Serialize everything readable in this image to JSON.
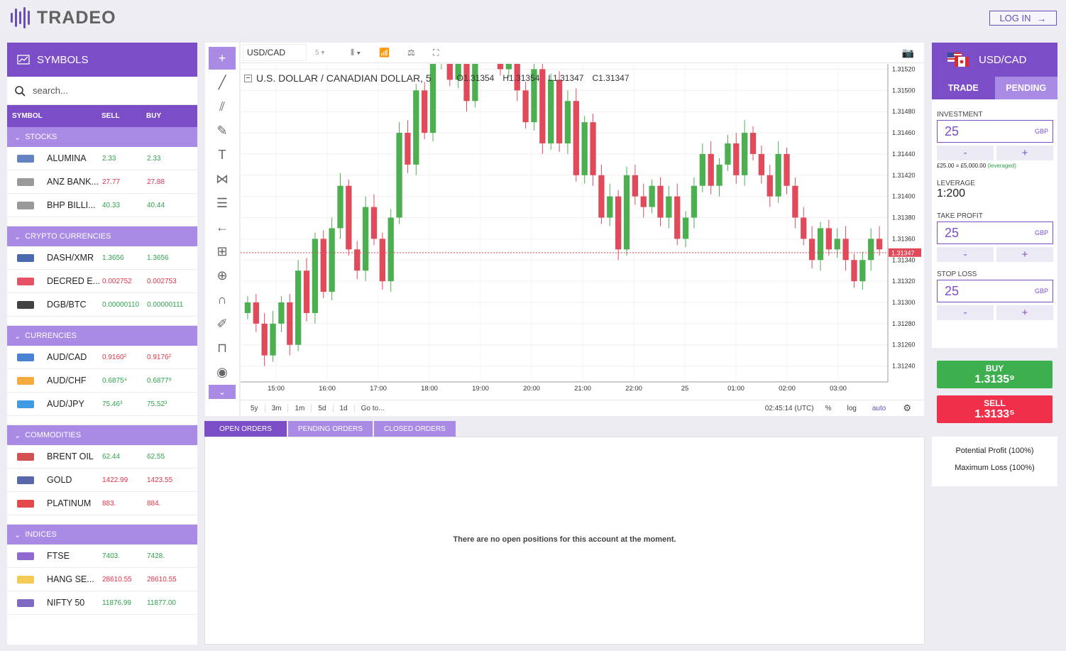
{
  "header": {
    "logo": "TRADEO",
    "login": "LOG IN"
  },
  "symbols": {
    "title": "SYMBOLS",
    "search_placeholder": "search...",
    "columns": {
      "symbol": "SYMBOL",
      "sell": "SELL",
      "buy": "BUY"
    },
    "categories": [
      {
        "name": "STOCKS",
        "rows": [
          {
            "name": "ALUMINA",
            "sell": "2.33",
            "buy": "2.33",
            "color": "g"
          },
          {
            "name": "ANZ BANK...",
            "sell": "27.77",
            "buy": "27.88",
            "color": "r"
          },
          {
            "name": "BHP BILLI...",
            "sell": "40.33",
            "buy": "40.44",
            "color": "g"
          }
        ]
      },
      {
        "name": "CRYPTO CURRENCIES",
        "rows": [
          {
            "name": "DASH/XMR",
            "sell": "1.3656",
            "buy": "1.3656",
            "color": "g"
          },
          {
            "name": "DECRED E...",
            "sell": "0.002752",
            "buy": "0.002753",
            "color": "r"
          },
          {
            "name": "DGB/BTC",
            "sell": "0.00000110",
            "buy": "0.00000111",
            "color": "g"
          }
        ]
      },
      {
        "name": "CURRENCIES",
        "rows": [
          {
            "name": "AUD/CAD",
            "sell": "0.9160²",
            "buy": "0.9176²",
            "color": "r"
          },
          {
            "name": "AUD/CHF",
            "sell": "0.6875⁴",
            "buy": "0.6877⁸",
            "color": "g"
          },
          {
            "name": "AUD/JPY",
            "sell": "75.46³",
            "buy": "75.52³",
            "color": "g"
          }
        ]
      },
      {
        "name": "COMMODITIES",
        "rows": [
          {
            "name": "BRENT OIL",
            "sell": "62.44",
            "buy": "62.55",
            "color": "g"
          },
          {
            "name": "GOLD",
            "sell": "1422.99",
            "buy": "1423.55",
            "color": "r"
          },
          {
            "name": "PLATINUM",
            "sell": "883.",
            "buy": "884.",
            "color": "r"
          }
        ]
      },
      {
        "name": "INDICES",
        "rows": [
          {
            "name": "FTSE",
            "sell": "7403.",
            "buy": "7428.",
            "color": "g"
          },
          {
            "name": "HANG SE...",
            "sell": "28610.55",
            "buy": "28610.55",
            "color": "r"
          },
          {
            "name": "NIFTY 50",
            "sell": "11876.99",
            "buy": "11877.00",
            "color": "g"
          }
        ]
      }
    ]
  },
  "chart": {
    "symbol": "USD/CAD",
    "interval": "5",
    "title": "U.S. DOLLAR / CANADIAN DOLLAR, 5",
    "ohlc": {
      "o": "O1.31354",
      "h": "H1.31354",
      "l": "L1.31347",
      "c": "C1.31347"
    },
    "last_price_label": "1.31347",
    "ranges": [
      "5y",
      "3m",
      "1m",
      "5d",
      "1d",
      "Go to..."
    ],
    "time": "02:45:14 (UTC)",
    "bottom_opts": [
      "%",
      "log",
      "auto"
    ],
    "colors": {
      "up": "#4caf50",
      "down": "#e04a5a"
    }
  },
  "chart_data": {
    "type": "candlestick",
    "ylim": [
      1.31225,
      1.31525
    ],
    "y_ticks": [
      "1.31520",
      "1.31500",
      "1.31480",
      "1.31460",
      "1.31440",
      "1.31420",
      "1.31400",
      "1.31380",
      "1.31360",
      "1.31340",
      "1.31320",
      "1.31300",
      "1.31280",
      "1.31260",
      "1.31240"
    ],
    "x_ticks": [
      "15:00",
      "16:00",
      "17:00",
      "18:00",
      "19:00",
      "20:00",
      "21:00",
      "22:00",
      "25",
      "01:00",
      "02:00",
      "03:00"
    ],
    "closes": [
      1.313,
      1.3128,
      1.3125,
      1.3128,
      1.313,
      1.3126,
      1.3133,
      1.3129,
      1.3136,
      1.3131,
      1.3137,
      1.3141,
      1.3135,
      1.3133,
      1.3139,
      1.3136,
      1.3132,
      1.3138,
      1.3146,
      1.3143,
      1.315,
      1.3146,
      1.3153,
      1.3157,
      1.3151,
      1.3156,
      1.3149,
      1.3154,
      1.316,
      1.3157,
      1.3152,
      1.3157,
      1.315,
      1.3147,
      1.3152,
      1.3145,
      1.3151,
      1.3145,
      1.3149,
      1.3142,
      1.3147,
      1.3142,
      1.3138,
      1.314,
      1.3135,
      1.3142,
      1.314,
      1.3139,
      1.3141,
      1.3138,
      1.314,
      1.3136,
      1.3138,
      1.3141,
      1.3144,
      1.3141,
      1.3143,
      1.3145,
      1.3142,
      1.3146,
      1.3144,
      1.3142,
      1.314,
      1.3144,
      1.3141,
      1.3138,
      1.3136,
      1.3134,
      1.3137,
      1.3135,
      1.3136,
      1.3134,
      1.3132,
      1.3134,
      1.3136,
      1.3135
    ],
    "ranges_shown": [
      "5y",
      "3m",
      "1m",
      "5d",
      "1d"
    ]
  },
  "orders": {
    "tabs": [
      "OPEN ORDERS",
      "PENDING ORDERS",
      "CLOSED ORDERS"
    ],
    "empty_message": "There are no open positions for this account at the moment."
  },
  "trade": {
    "symbol": "USD/CAD",
    "tabs": [
      "TRADE",
      "PENDING"
    ],
    "investment_label": "INVESTMENT",
    "investment_value": "25",
    "currency": "GBP",
    "leveraged_note": "£25.00 = £5,000.00",
    "leveraged_tag": "(leveraged)",
    "leverage_label": "LEVERAGE",
    "leverage_value": "1:200",
    "take_profit_label": "TAKE PROFIT",
    "take_profit_value": "25",
    "stop_loss_label": "STOP LOSS",
    "stop_loss_value": "25",
    "minus": "-",
    "plus": "+",
    "buy_label": "BUY",
    "buy_price": "1.3135⁹",
    "sell_label": "SELL",
    "sell_price": "1.3133⁵",
    "potential_profit": "Potential Profit (100%)",
    "maximum_loss": "Maximum Loss (100%)",
    "buy_color": "#3eaf4e",
    "sell_color": "#f0304a"
  }
}
